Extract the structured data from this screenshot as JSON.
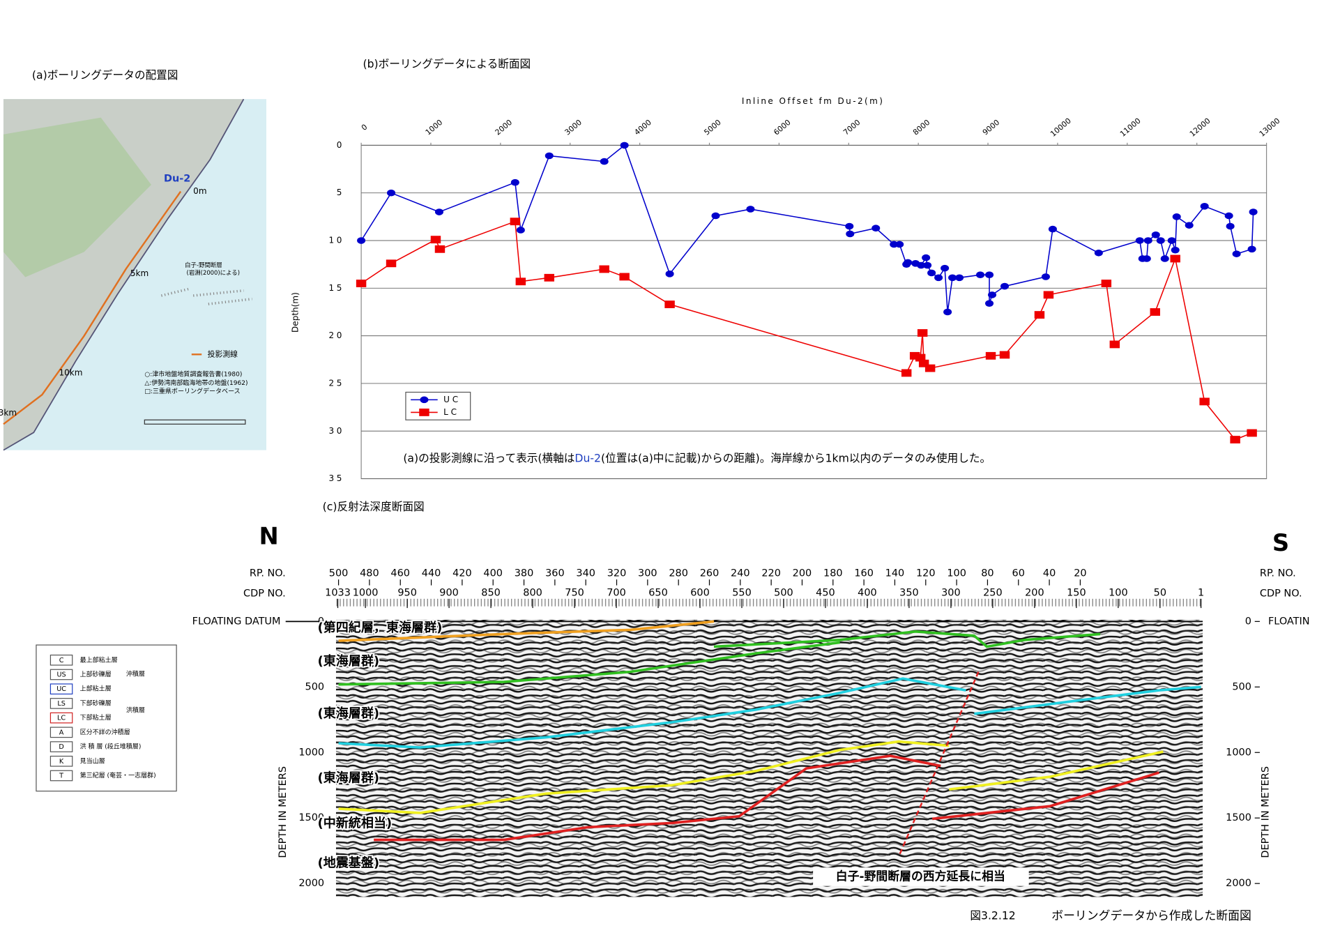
{
  "chart_data": {
    "type": "line",
    "title": "(b)ボーリングデータによる断面図",
    "x_label": "Inline Offset fm Du-2(m)",
    "y_label": "Depth(m)",
    "xlim": [
      0,
      13000
    ],
    "xticks": [
      0,
      1000,
      2000,
      3000,
      4000,
      5000,
      6000,
      7000,
      8000,
      9000,
      10000,
      11000,
      12000,
      13000
    ],
    "ylim": [
      0,
      35
    ],
    "yticks": [
      0,
      5,
      10,
      15,
      20,
      25,
      30,
      35
    ],
    "y_inverted": true,
    "grid": true,
    "legend_position": "lower left",
    "series": [
      {
        "name": "U C",
        "color": "#0000cc",
        "x": [
          0,
          430,
          1120,
          2210,
          2290,
          2700,
          3490,
          3780,
          4430,
          5090,
          5590,
          7010,
          7020,
          7390,
          7650,
          7730,
          7830,
          7850,
          7960,
          8040,
          8110,
          8130,
          8190,
          8290,
          8380,
          8420,
          8490,
          8590,
          8890,
          9020,
          9020,
          9060,
          9240,
          9830,
          9930,
          10590,
          11180,
          11220,
          11280,
          11300,
          11410,
          11480,
          11540,
          11640,
          11690,
          11710,
          11890,
          12110,
          12460,
          12480,
          12570,
          12790,
          12810
        ],
        "values": [
          10,
          5,
          7,
          3.9,
          8.9,
          1.1,
          1.7,
          0,
          13.5,
          7.4,
          6.7,
          8.5,
          9.3,
          8.7,
          10.4,
          10.4,
          12.5,
          12.3,
          12.4,
          12.6,
          11.8,
          12.6,
          13.4,
          13.9,
          12.9,
          17.5,
          13.9,
          13.9,
          13.6,
          13.6,
          16.6,
          15.7,
          14.8,
          13.8,
          8.8,
          11.3,
          10,
          11.9,
          11.9,
          10,
          9.4,
          10,
          11.9,
          10,
          11,
          7.5,
          8.4,
          6.4,
          7.4,
          8.5,
          11.4,
          10.9,
          7
        ]
      },
      {
        "name": "L C",
        "color": "#ee0000",
        "x": [
          0,
          430,
          1070,
          1130,
          2210,
          2290,
          2700,
          3490,
          3780,
          4430,
          7830,
          7950,
          8030,
          8060,
          8080,
          8170,
          9040,
          9240,
          9740,
          9870,
          10700,
          10820,
          11400,
          11690,
          12110,
          12550,
          12790
        ],
        "values": [
          14.5,
          12.4,
          9.9,
          10.9,
          8,
          14.3,
          13.9,
          13,
          13.8,
          16.7,
          23.9,
          22.1,
          22.3,
          19.7,
          22.9,
          23.4,
          22.1,
          22,
          17.8,
          15.7,
          14.5,
          20.9,
          17.5,
          11.9,
          26.9,
          30.9,
          30.2
        ]
      }
    ],
    "annotation": [
      "(a)の投影測線に沿って表示(横軸は",
      "Du-2",
      "(位置は(a)中に記載)からの距離)。海岸線から1km以内のデータのみ使用した。"
    ]
  },
  "map": {
    "title": "(a)ボーリングデータの配置図",
    "du2": "Du-2",
    "zero": "0m",
    "km5": "5km",
    "km10": "10km",
    "km_cut": "3km",
    "fault": "白子-野間断層",
    "fault_source": "(岩淵(2000)による)",
    "legend_line": "投影測線",
    "refs": [
      "○:津市地盤地質調査報告書(1980)",
      "△:伊勢湾南部臨海地帯の地盤(1962)",
      "□:三重県ボーリングデータベース"
    ]
  },
  "strata_legend": {
    "rows": [
      {
        "code": "C",
        "name": "最上部粘土層"
      },
      {
        "code": "US",
        "name": "上部砂礫層"
      },
      {
        "code": "UC",
        "name": "上部粘土層"
      },
      {
        "code": "LS",
        "name": "下部砂礫層"
      },
      {
        "code": "LC",
        "name": "下部粘土層"
      },
      {
        "code": "A",
        "name": "区分不詳の沖積層"
      },
      {
        "code": "D",
        "name": "洪 積 層 (段丘堆積層)"
      },
      {
        "code": "K",
        "name": "見当山層"
      },
      {
        "code": "T",
        "name": "第三紀層 (奄芸・一志層群)"
      }
    ],
    "groups": [
      "沖積層",
      "洪積層"
    ]
  },
  "section": {
    "title": "(c)反射法深度断面図",
    "north": "N",
    "south": "S",
    "rp_label": "RP. NO.",
    "cdp_label": "CDP NO.",
    "datum_label": "FLOATING DATUM",
    "datum_label_right": "FLOATIN",
    "rp_ticks": [
      500,
      480,
      460,
      440,
      420,
      400,
      380,
      360,
      340,
      320,
      300,
      280,
      260,
      240,
      220,
      200,
      180,
      160,
      140,
      120,
      100,
      80,
      60,
      40,
      20
    ],
    "cdp_ticks": [
      1033,
      1000,
      950,
      900,
      850,
      800,
      750,
      700,
      650,
      600,
      550,
      500,
      450,
      400,
      350,
      300,
      250,
      200,
      150,
      100,
      50,
      1
    ],
    "depth_ticks": [
      0,
      500,
      1000,
      1500,
      2000
    ],
    "depth_label": "DEPTH IN METERS",
    "layers": [
      "(第四紀層，東海層群)",
      "(東海層群)",
      "(東海層群)",
      "(東海層群)",
      "(中新統相当)",
      "(地震基盤)"
    ],
    "fault_note": "白子-野間断層の西方延長に相当"
  },
  "caption": {
    "number": "図3.2.12",
    "text": "ボーリングデータから作成した断面図"
  }
}
